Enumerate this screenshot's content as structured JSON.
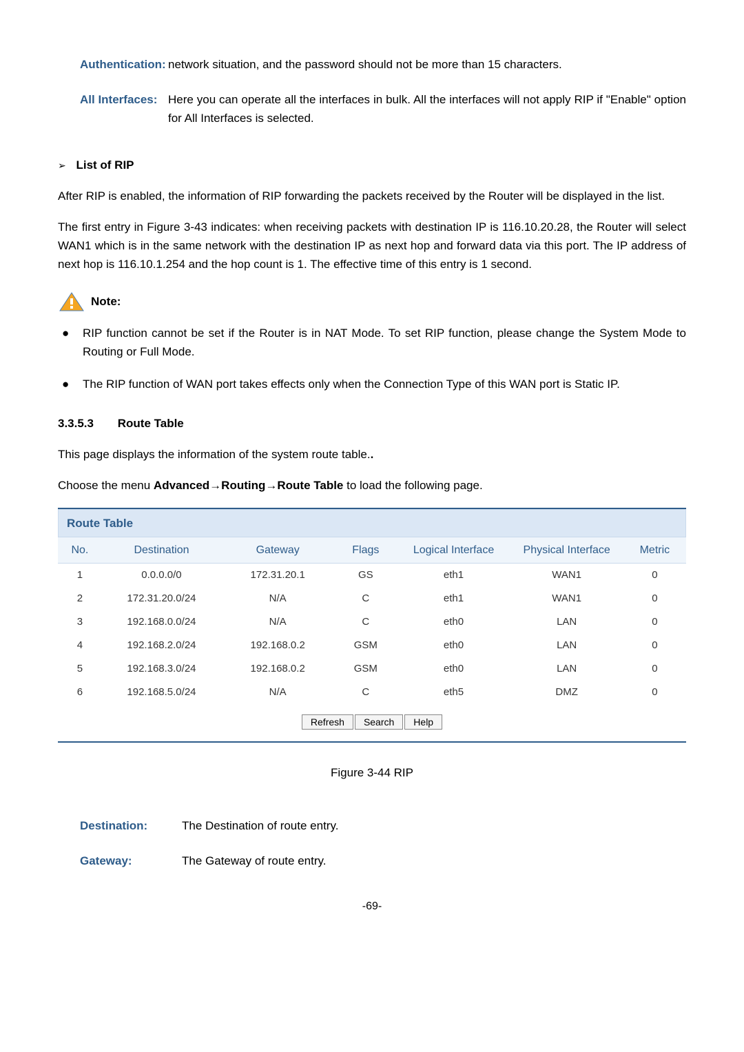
{
  "defs1": {
    "auth_label": "Authentication:",
    "auth_text": "network situation, and the password should not be more than 15 characters.",
    "allif_label": "All Interfaces:",
    "allif_text": "Here you can operate all the interfaces in bulk. All the interfaces will not apply RIP if \"Enable\" option for All Interfaces is selected."
  },
  "list_rip_title": "List of RIP",
  "para1": "After RIP is enabled, the information of RIP forwarding the packets received by the Router will be displayed in the list.",
  "para2": "The first entry in Figure 3-43 indicates: when receiving packets with destination IP is 116.10.20.28, the Router will select WAN1 which is in the same network with the destination IP as next hop and forward data via this port. The IP address of next hop is 116.10.1.254 and the hop count is 1. The effective time of this entry is 1 second.",
  "note_label": "Note:",
  "notes": [
    "RIP function cannot be set if the Router is in NAT Mode. To set RIP function, please change the System Mode to Routing or Full Mode.",
    "The RIP function of WAN port takes effects only when the Connection Type of this WAN port is Static IP."
  ],
  "h3_num": "3.3.5.3",
  "h3_title": "Route Table",
  "para3": "This page displays the information of the system route table.",
  "para4_pre": "Choose the menu ",
  "para4_bold": "Advanced→Routing→Route Table",
  "para4_post": " to load the following page.",
  "table": {
    "title": "Route Table",
    "title_color": "#2e5c8a",
    "header_bg": "#eff5fb",
    "title_bg": "#dbe7f5",
    "border_color": "#c9d9ec",
    "columns": [
      "No.",
      "Destination",
      "Gateway",
      "Flags",
      "Logical Interface",
      "Physical Interface",
      "Metric"
    ],
    "col_widths": [
      "7%",
      "19%",
      "18%",
      "10%",
      "18%",
      "18%",
      "10%"
    ],
    "rows": [
      [
        "1",
        "0.0.0.0/0",
        "172.31.20.1",
        "GS",
        "eth1",
        "WAN1",
        "0"
      ],
      [
        "2",
        "172.31.20.0/24",
        "N/A",
        "C",
        "eth1",
        "WAN1",
        "0"
      ],
      [
        "3",
        "192.168.0.0/24",
        "N/A",
        "C",
        "eth0",
        "LAN",
        "0"
      ],
      [
        "4",
        "192.168.2.0/24",
        "192.168.0.2",
        "GSM",
        "eth0",
        "LAN",
        "0"
      ],
      [
        "5",
        "192.168.3.0/24",
        "192.168.0.2",
        "GSM",
        "eth0",
        "LAN",
        "0"
      ],
      [
        "6",
        "192.168.5.0/24",
        "N/A",
        "C",
        "eth5",
        "DMZ",
        "0"
      ]
    ],
    "buttons": [
      "Refresh",
      "Search",
      "Help"
    ]
  },
  "fig_caption": "Figure 3-44 RIP",
  "defs2": {
    "dest_label": "Destination:",
    "dest_text": "The Destination of route entry.",
    "gw_label": "Gateway:",
    "gw_text": "The Gateway of route entry."
  },
  "page_num": "-69-",
  "colors": {
    "link_blue": "#2e5c8a",
    "warn_orange": "#f5a623",
    "warn_border": "#c9d9ec"
  }
}
